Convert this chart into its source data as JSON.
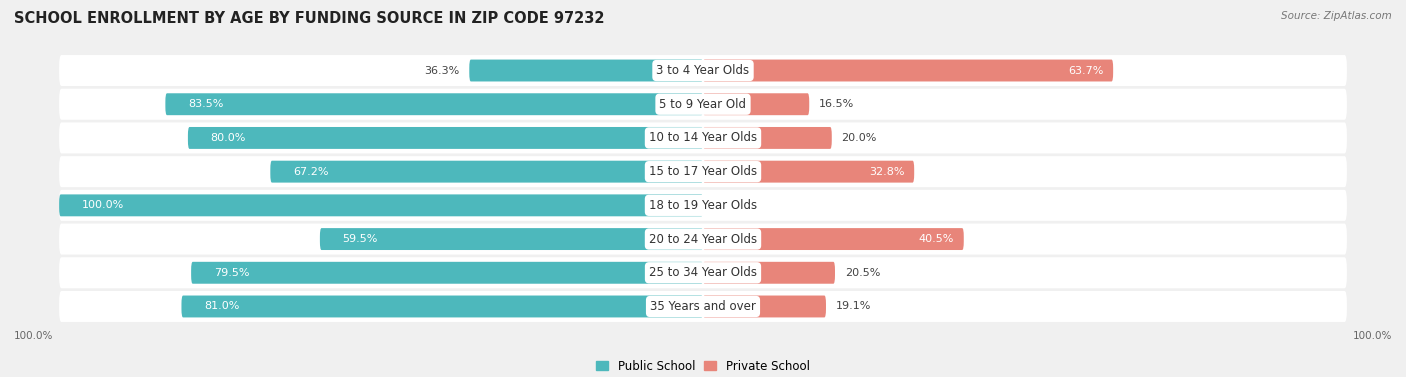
{
  "title": "SCHOOL ENROLLMENT BY AGE BY FUNDING SOURCE IN ZIP CODE 97232",
  "source": "Source: ZipAtlas.com",
  "categories": [
    "3 to 4 Year Olds",
    "5 to 9 Year Old",
    "10 to 14 Year Olds",
    "15 to 17 Year Olds",
    "18 to 19 Year Olds",
    "20 to 24 Year Olds",
    "25 to 34 Year Olds",
    "35 Years and over"
  ],
  "public_pct": [
    36.3,
    83.5,
    80.0,
    67.2,
    100.0,
    59.5,
    79.5,
    81.0
  ],
  "private_pct": [
    63.7,
    16.5,
    20.0,
    32.8,
    0.0,
    40.5,
    20.5,
    19.1
  ],
  "public_color": "#4db8bc",
  "private_color": "#e8857a",
  "bg_color": "#f0f0f0",
  "row_bg_color": "#e8e8e8",
  "row_bar_bg": "#ffffff",
  "title_fontsize": 10.5,
  "label_fontsize": 8,
  "bar_height": 0.65,
  "legend_labels": [
    "Public School",
    "Private School"
  ],
  "pub_label_inside_threshold": 50,
  "priv_label_inside_threshold": 25
}
